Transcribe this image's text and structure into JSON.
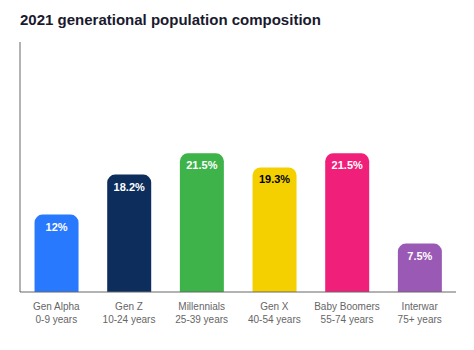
{
  "chart_data": {
    "type": "bar",
    "title": "2021 generational population composition",
    "categories": [
      "Gen Alpha\n0-9 years",
      "Gen Z\n10-24 years",
      "Millennials\n25-39 years",
      "Gen X\n40-54 years",
      "Baby Boomers\n55-74 years",
      "Interwar\n75+ years"
    ],
    "values": [
      12.0,
      18.2,
      21.5,
      19.3,
      21.5,
      7.5
    ],
    "value_labels": [
      "12%",
      "18.2%",
      "21.5%",
      "19.3%",
      "21.5%",
      "7.5%"
    ],
    "data_labels": true,
    "colors": [
      "#2979FF",
      "#0D2D5C",
      "#3DB34A",
      "#F5D000",
      "#F0207A",
      "#9B59B6"
    ],
    "ylim": [
      0,
      38.75
    ],
    "yticks": [],
    "tick_labels": "x"
  }
}
